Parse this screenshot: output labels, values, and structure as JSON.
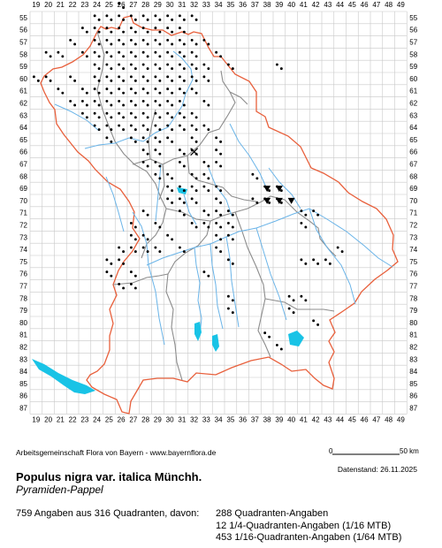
{
  "map": {
    "col_labels": [
      "19",
      "20",
      "21",
      "22",
      "23",
      "24",
      "25",
      "26",
      "27",
      "28",
      "29",
      "30",
      "31",
      "32",
      "33",
      "34",
      "35",
      "36",
      "37",
      "38",
      "39",
      "40",
      "41",
      "42",
      "43",
      "44",
      "45",
      "46",
      "47",
      "48",
      "49"
    ],
    "row_labels": [
      "55",
      "56",
      "57",
      "58",
      "59",
      "60",
      "61",
      "62",
      "63",
      "64",
      "65",
      "66",
      "67",
      "68",
      "69",
      "70",
      "71",
      "72",
      "73",
      "74",
      "75",
      "76",
      "77",
      "78",
      "79",
      "80",
      "81",
      "82",
      "83",
      "84",
      "85",
      "86",
      "87"
    ],
    "colors": {
      "grid": "#c8c8c8",
      "state_border": "#e8603c",
      "district_border": "#8c8c8c",
      "rivers": "#6ab4e8",
      "lakes": "#19c3e6",
      "dots": "#000000"
    },
    "dot_cells": [
      [
        26,
        54
      ],
      [
        24,
        55
      ],
      [
        25,
        55
      ],
      [
        26,
        55
      ],
      [
        27,
        55
      ],
      [
        28,
        55
      ],
      [
        29,
        55
      ],
      [
        30,
        55
      ],
      [
        31,
        55
      ],
      [
        32,
        55
      ],
      [
        23,
        56
      ],
      [
        24,
        56
      ],
      [
        25,
        56
      ],
      [
        26,
        56
      ],
      [
        27,
        56
      ],
      [
        28,
        56
      ],
      [
        29,
        56
      ],
      [
        30,
        56
      ],
      [
        31,
        56
      ],
      [
        22,
        57
      ],
      [
        24,
        57
      ],
      [
        25,
        57
      ],
      [
        26,
        57
      ],
      [
        27,
        57
      ],
      [
        28,
        57
      ],
      [
        29,
        57
      ],
      [
        30,
        57
      ],
      [
        31,
        57
      ],
      [
        32,
        57
      ],
      [
        33,
        57
      ],
      [
        20,
        58
      ],
      [
        21,
        58
      ],
      [
        23,
        58
      ],
      [
        24,
        58
      ],
      [
        25,
        58
      ],
      [
        26,
        58
      ],
      [
        27,
        58
      ],
      [
        28,
        58
      ],
      [
        29,
        58
      ],
      [
        30,
        58
      ],
      [
        31,
        58
      ],
      [
        32,
        58
      ],
      [
        34,
        58
      ],
      [
        24,
        59
      ],
      [
        25,
        59
      ],
      [
        26,
        59
      ],
      [
        27,
        59
      ],
      [
        28,
        59
      ],
      [
        29,
        59
      ],
      [
        30,
        59
      ],
      [
        31,
        59
      ],
      [
        32,
        59
      ],
      [
        33,
        59
      ],
      [
        35,
        59
      ],
      [
        39,
        59
      ],
      [
        19,
        60
      ],
      [
        20,
        60
      ],
      [
        22,
        60
      ],
      [
        24,
        60
      ],
      [
        25,
        60
      ],
      [
        26,
        60
      ],
      [
        27,
        60
      ],
      [
        28,
        60
      ],
      [
        29,
        60
      ],
      [
        30,
        60
      ],
      [
        31,
        60
      ],
      [
        32,
        60
      ],
      [
        33,
        60
      ],
      [
        21,
        61
      ],
      [
        23,
        61
      ],
      [
        24,
        61
      ],
      [
        25,
        61
      ],
      [
        26,
        61
      ],
      [
        27,
        61
      ],
      [
        28,
        61
      ],
      [
        29,
        61
      ],
      [
        30,
        61
      ],
      [
        31,
        61
      ],
      [
        32,
        61
      ],
      [
        22,
        62
      ],
      [
        23,
        62
      ],
      [
        24,
        62
      ],
      [
        25,
        62
      ],
      [
        26,
        62
      ],
      [
        27,
        62
      ],
      [
        28,
        62
      ],
      [
        29,
        62
      ],
      [
        30,
        62
      ],
      [
        31,
        62
      ],
      [
        33,
        62
      ],
      [
        23,
        63
      ],
      [
        24,
        63
      ],
      [
        25,
        63
      ],
      [
        26,
        63
      ],
      [
        27,
        63
      ],
      [
        28,
        63
      ],
      [
        29,
        63
      ],
      [
        30,
        63
      ],
      [
        31,
        63
      ],
      [
        32,
        63
      ],
      [
        24,
        64
      ],
      [
        25,
        64
      ],
      [
        26,
        64
      ],
      [
        27,
        64
      ],
      [
        28,
        64
      ],
      [
        29,
        64
      ],
      [
        30,
        64
      ],
      [
        31,
        64
      ],
      [
        32,
        64
      ],
      [
        33,
        64
      ],
      [
        25,
        65
      ],
      [
        27,
        65
      ],
      [
        28,
        65
      ],
      [
        29,
        65
      ],
      [
        30,
        65
      ],
      [
        32,
        65
      ],
      [
        34,
        65
      ],
      [
        28,
        66
      ],
      [
        29,
        66
      ],
      [
        31,
        66
      ],
      [
        32,
        66
      ],
      [
        34,
        66
      ],
      [
        28,
        67
      ],
      [
        29,
        67
      ],
      [
        31,
        67
      ],
      [
        33,
        67
      ],
      [
        34,
        67
      ],
      [
        29,
        68
      ],
      [
        30,
        68
      ],
      [
        32,
        68
      ],
      [
        33,
        68
      ],
      [
        37,
        68
      ],
      [
        30,
        69
      ],
      [
        31,
        69
      ],
      [
        32,
        69
      ],
      [
        33,
        69
      ],
      [
        34,
        69
      ],
      [
        38,
        69
      ],
      [
        39,
        69
      ],
      [
        30,
        70
      ],
      [
        31,
        70
      ],
      [
        32,
        70
      ],
      [
        34,
        70
      ],
      [
        37,
        70
      ],
      [
        38,
        70
      ],
      [
        39,
        70
      ],
      [
        28,
        71
      ],
      [
        31,
        71
      ],
      [
        33,
        71
      ],
      [
        34,
        71
      ],
      [
        35,
        71
      ],
      [
        41,
        71
      ],
      [
        42,
        71
      ],
      [
        27,
        72
      ],
      [
        29,
        72
      ],
      [
        32,
        72
      ],
      [
        33,
        72
      ],
      [
        34,
        72
      ],
      [
        35,
        72
      ],
      [
        41,
        72
      ],
      [
        27,
        73
      ],
      [
        28,
        73
      ],
      [
        30,
        73
      ],
      [
        34,
        73
      ],
      [
        35,
        73
      ],
      [
        26,
        74
      ],
      [
        27,
        74
      ],
      [
        28,
        74
      ],
      [
        29,
        74
      ],
      [
        31,
        74
      ],
      [
        34,
        74
      ],
      [
        44,
        74
      ],
      [
        25,
        75
      ],
      [
        26,
        75
      ],
      [
        35,
        75
      ],
      [
        41,
        75
      ],
      [
        42,
        75
      ],
      [
        43,
        75
      ],
      [
        25,
        76
      ],
      [
        27,
        76
      ],
      [
        33,
        76
      ],
      [
        26,
        77
      ],
      [
        27,
        77
      ],
      [
        35,
        78
      ],
      [
        40,
        78
      ],
      [
        41,
        78
      ],
      [
        35,
        79
      ],
      [
        40,
        79
      ],
      [
        42,
        80
      ],
      [
        38,
        81
      ],
      [
        39,
        82
      ]
    ],
    "triangle_cells": [
      [
        38,
        69
      ],
      [
        39,
        69
      ],
      [
        38,
        70
      ],
      [
        39,
        70
      ],
      [
        40,
        70
      ]
    ],
    "cross_cells": [
      [
        32,
        66
      ]
    ]
  },
  "footer": {
    "credit": "Arbeitsgemeinschaft Flora von Bayern - www.bayernflora.de",
    "scale_zero": "0",
    "scale_end": "50 km",
    "date": "Datenstand: 26.11.2025",
    "title": "Populus nigra var. italica Münchh.",
    "subtitle": "Pyramiden-Pappel",
    "stats_left": "759 Angaben aus 316 Quadranten, davon:",
    "stats_lines": [
      "288 Quadranten-Angaben",
      "12 1/4-Quadranten-Angaben (1/16 MTB)",
      "453 1/16-Quadranten-Angaben (1/64 MTB)"
    ]
  }
}
